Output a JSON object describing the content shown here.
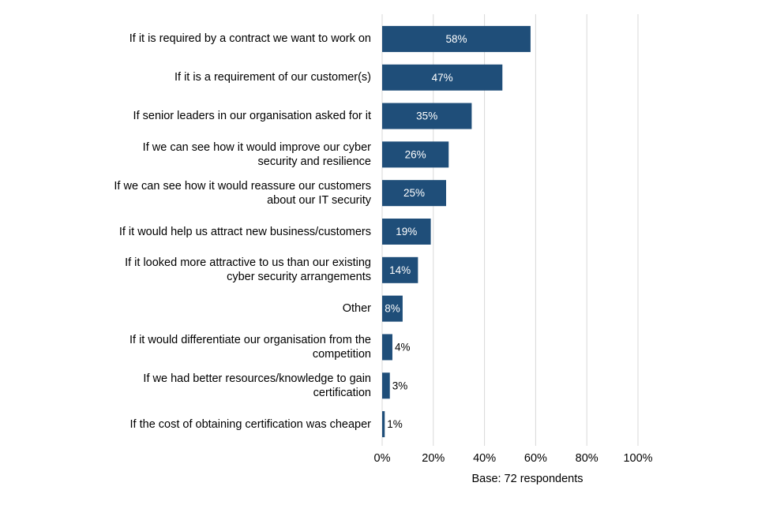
{
  "chart_data": {
    "type": "barh",
    "categories": [
      "If it is required by a contract we want to work on",
      "If it is a requirement of our customer(s)",
      "If senior leaders in our organisation asked for it",
      "If we can see how it would improve our cyber security and resilience",
      "If we can see how it would reassure our customers about our IT security",
      "If it would help us attract new business/customers",
      "If it looked more attractive to us than our existing cyber security arrangements",
      "Other",
      "If it would differentiate our organisation from the competition",
      "If we had better resources/knowledge to gain certification",
      "If the cost of obtaining certification was cheaper"
    ],
    "values": [
      58,
      47,
      35,
      26,
      25,
      19,
      14,
      8,
      4,
      3,
      1
    ],
    "value_labels": [
      "58%",
      "47%",
      "35%",
      "26%",
      "25%",
      "19%",
      "14%",
      "8%",
      "4%",
      "3%",
      "1%"
    ],
    "color": "#1f4e79",
    "xlim": [
      0,
      100
    ],
    "xticks": [
      {
        "value": 0,
        "label": "0%"
      },
      {
        "value": 20,
        "label": "20%"
      },
      {
        "value": 40,
        "label": "40%"
      },
      {
        "value": 60,
        "label": "60%"
      },
      {
        "value": 80,
        "label": "80%"
      },
      {
        "value": 100,
        "label": "100%"
      }
    ],
    "xlabel": "Base: 72 respondents",
    "grid": true
  }
}
